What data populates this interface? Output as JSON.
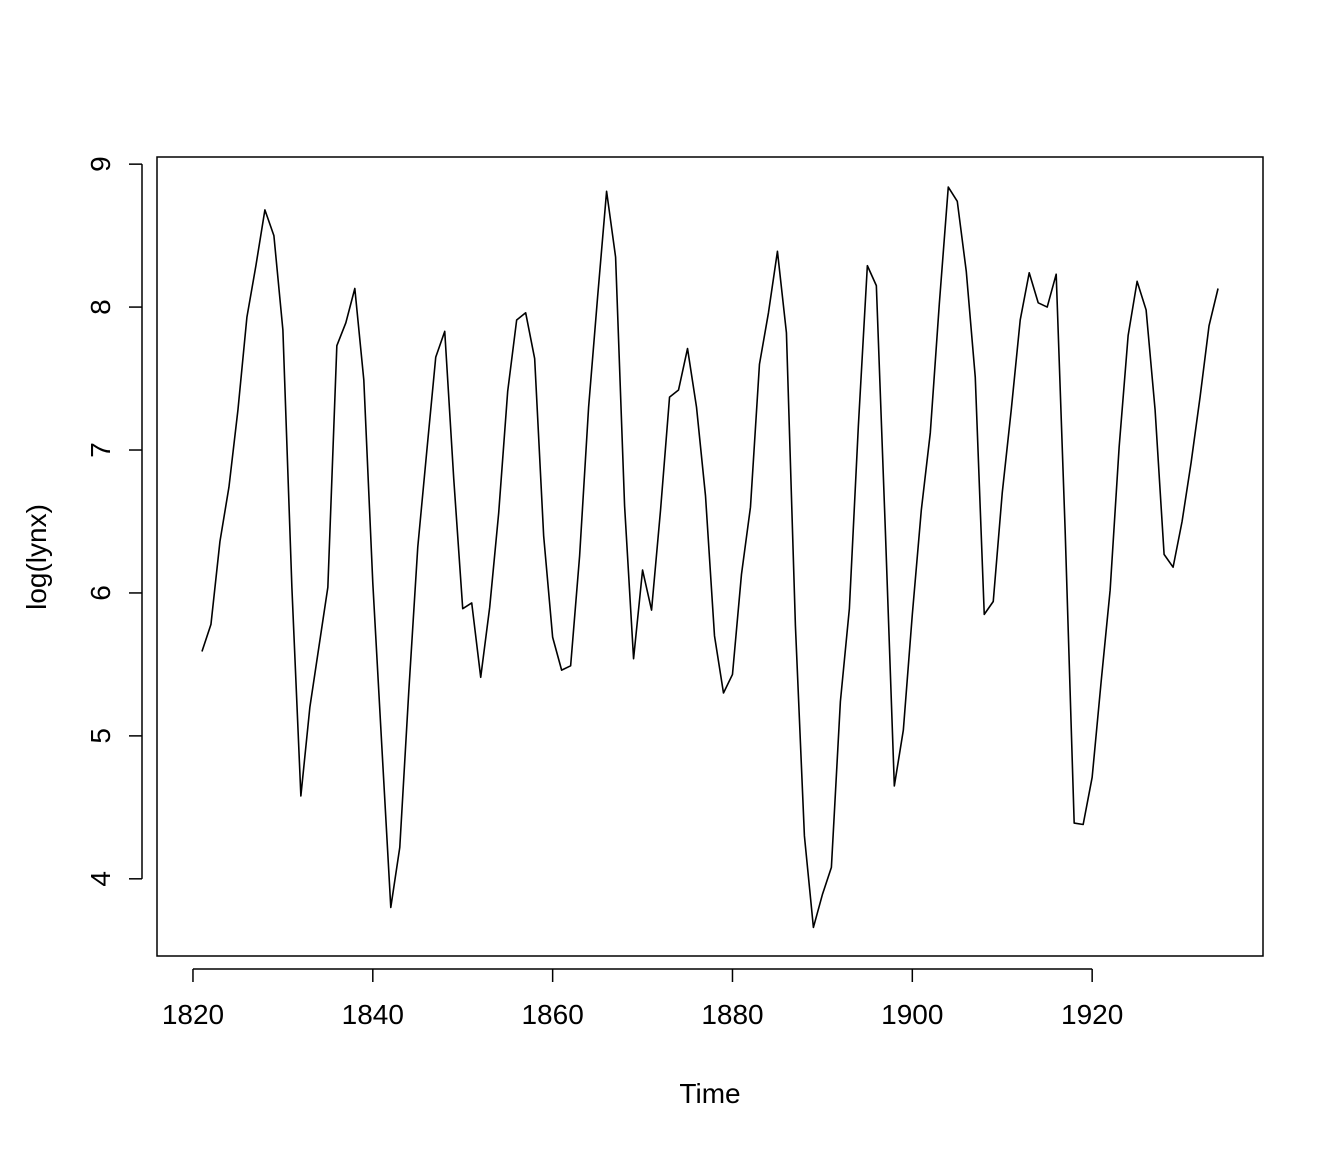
{
  "chart_data": {
    "type": "line",
    "xlabel": "Time",
    "ylabel": "log(lynx)",
    "xlim": [
      1816,
      1939
    ],
    "ylim": [
      3.46,
      9.05
    ],
    "xticks": [
      "1820",
      "1840",
      "1860",
      "1880",
      "1900",
      "1920"
    ],
    "yticks": [
      "4",
      "5",
      "6",
      "7",
      "8",
      "9"
    ],
    "grid": false,
    "legend": "none",
    "line_color": "#000000",
    "series": [
      {
        "x": [
          1821,
          1822,
          1823,
          1824,
          1825,
          1826,
          1827,
          1828,
          1829,
          1830,
          1831,
          1832,
          1833,
          1834,
          1835,
          1836,
          1837,
          1838,
          1839,
          1840,
          1841,
          1842,
          1843,
          1844,
          1845,
          1846,
          1847,
          1848,
          1849,
          1850,
          1851,
          1852,
          1853,
          1854,
          1855,
          1856,
          1857,
          1858,
          1859,
          1860,
          1861,
          1862,
          1863,
          1864,
          1865,
          1866,
          1867,
          1868,
          1869,
          1870,
          1871,
          1872,
          1873,
          1874,
          1875,
          1876,
          1877,
          1878,
          1879,
          1880,
          1881,
          1882,
          1883,
          1884,
          1885,
          1886,
          1887,
          1888,
          1889,
          1890,
          1891,
          1892,
          1893,
          1894,
          1895,
          1896,
          1897,
          1898,
          1899,
          1900,
          1901,
          1902,
          1903,
          1904,
          1905,
          1906,
          1907,
          1908,
          1909,
          1910,
          1911,
          1912,
          1913,
          1914,
          1915,
          1916,
          1917,
          1918,
          1919,
          1920,
          1921,
          1922,
          1923,
          1924,
          1925,
          1926,
          1927,
          1928,
          1929,
          1930,
          1931,
          1932,
          1933,
          1934
        ],
        "values": [
          5.59,
          5.78,
          6.36,
          6.74,
          7.28,
          7.93,
          8.29,
          8.68,
          8.5,
          7.84,
          6.04,
          4.58,
          5.2,
          5.62,
          6.04,
          7.73,
          7.89,
          8.13,
          7.49,
          6.07,
          4.93,
          3.8,
          4.22,
          5.31,
          6.32,
          6.99,
          7.65,
          7.83,
          6.8,
          5.89,
          5.93,
          5.41,
          5.9,
          6.56,
          7.41,
          7.91,
          7.96,
          7.64,
          6.4,
          5.69,
          5.46,
          5.49,
          6.26,
          7.3,
          8.07,
          8.81,
          8.35,
          6.61,
          5.54,
          6.16,
          5.88,
          6.58,
          7.37,
          7.42,
          7.71,
          7.3,
          6.68,
          5.7,
          5.3,
          5.43,
          6.13,
          6.6,
          7.6,
          7.96,
          8.39,
          7.82,
          5.77,
          4.3,
          3.66,
          3.89,
          4.08,
          5.24,
          5.89,
          7.17,
          8.29,
          8.15,
          6.44,
          4.65,
          5.04,
          5.85,
          6.58,
          7.12,
          8.02,
          8.84,
          8.74,
          8.25,
          7.51,
          5.85,
          5.94,
          6.7,
          7.28,
          7.91,
          8.24,
          8.03,
          8.0,
          8.23,
          6.43,
          4.39,
          4.38,
          4.71,
          5.38,
          6.02,
          7.02,
          7.8,
          8.18,
          7.98,
          7.28,
          6.27,
          6.18,
          6.5,
          6.91,
          7.37,
          7.87,
          8.13
        ]
      }
    ]
  }
}
